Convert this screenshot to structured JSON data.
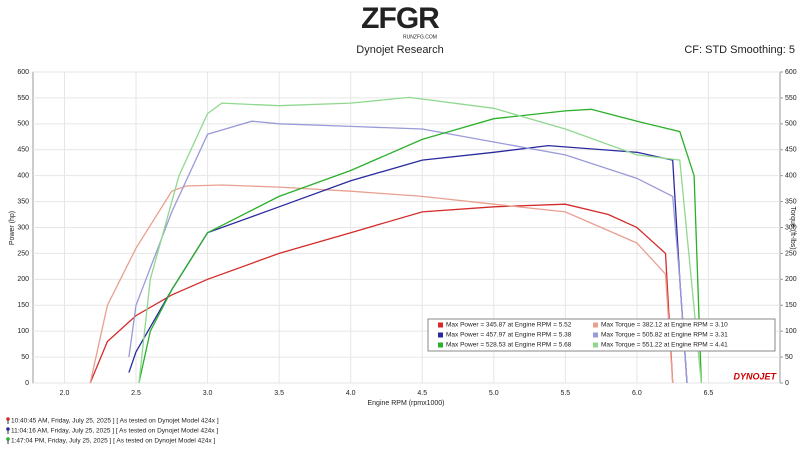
{
  "header": {
    "logo": "ZFGR",
    "site": "RUNZFG.COM",
    "subtitle": "Dynojet Research",
    "settings": "CF: STD Smoothing: 5"
  },
  "chart_data": {
    "type": "line",
    "xlabel": "Engine RPM (rpmx1000)",
    "ylabel": "Power (hp)",
    "y2label": "Torque (ft-lbs)",
    "watermark": "DYNOJET",
    "xlim": [
      1.78,
      7.0
    ],
    "xticks": [
      {
        "value": 2,
        "label": "2.0"
      },
      2.5,
      {
        "value": 3,
        "label": "3.0"
      },
      3.5,
      {
        "value": 4,
        "label": "4.0"
      },
      4.5,
      {
        "value": 5,
        "label": "5.0"
      },
      5.5,
      {
        "value": 6,
        "label": "6.0"
      },
      6.5
    ],
    "ylim": [
      0,
      600
    ],
    "yticks": [
      0,
      50,
      100,
      150,
      200,
      250,
      300,
      350,
      400,
      450,
      500,
      550,
      600
    ],
    "y2lim": [
      0,
      600
    ],
    "y2ticks": [
      0,
      50,
      100,
      150,
      200,
      250,
      300,
      350,
      400,
      450,
      500,
      550,
      600
    ],
    "grid": true,
    "series": [
      {
        "name": "Max Power = 345.87 at Engine RPM = 5.52",
        "color": "#d42a2a",
        "x": [
          2.18,
          2.3,
          2.5,
          2.75,
          3.0,
          3.5,
          4.0,
          4.5,
          5.0,
          5.5,
          5.8,
          6.0,
          6.2,
          6.25
        ],
        "values": [
          0,
          80,
          130,
          170,
          200,
          250,
          290,
          330,
          340,
          345,
          325,
          300,
          250,
          0
        ]
      },
      {
        "name": "Max Torque = 382.12 at Engine RPM = 3.10",
        "color": "#e8a090",
        "axis": "y2",
        "x": [
          2.18,
          2.3,
          2.5,
          2.75,
          2.85,
          3.1,
          3.5,
          4.0,
          4.5,
          5.0,
          5.5,
          6.0,
          6.2,
          6.25
        ],
        "values": [
          0,
          150,
          260,
          370,
          380,
          382,
          378,
          370,
          360,
          345,
          330,
          270,
          210,
          0
        ]
      },
      {
        "name": "Max Power = 457.97 at Engine RPM = 5.38",
        "color": "#2a2aa0",
        "x": [
          2.45,
          2.5,
          2.75,
          3.0,
          3.5,
          4.0,
          4.5,
          5.0,
          5.38,
          6.0,
          6.25,
          6.3,
          6.35
        ],
        "values": [
          20,
          60,
          180,
          290,
          340,
          390,
          430,
          445,
          458,
          445,
          430,
          200,
          0
        ]
      },
      {
        "name": "Max Torque = 505.82 at Engine RPM = 3.31",
        "color": "#9a9ad8",
        "axis": "y2",
        "x": [
          2.45,
          2.5,
          2.75,
          3.0,
          3.31,
          3.5,
          4.0,
          4.5,
          5.0,
          5.5,
          6.0,
          6.25,
          6.3,
          6.35
        ],
        "values": [
          50,
          150,
          330,
          480,
          505,
          500,
          495,
          490,
          465,
          440,
          395,
          360,
          200,
          0
        ]
      },
      {
        "name": "Max Power = 528.53 at Engine RPM = 5.68",
        "color": "#2ab02a",
        "x": [
          2.52,
          2.6,
          2.75,
          3.0,
          3.5,
          4.0,
          4.5,
          5.0,
          5.5,
          5.68,
          6.0,
          6.3,
          6.4,
          6.45
        ],
        "values": [
          0,
          100,
          180,
          290,
          360,
          410,
          470,
          510,
          525,
          528,
          505,
          485,
          400,
          0
        ]
      },
      {
        "name": "Max Torque = 551.22 at Engine RPM = 4.41",
        "color": "#90d890",
        "axis": "y2",
        "x": [
          2.52,
          2.6,
          2.8,
          3.0,
          3.1,
          3.5,
          4.0,
          4.41,
          5.0,
          5.5,
          6.0,
          6.3,
          6.45
        ],
        "values": [
          0,
          200,
          400,
          520,
          540,
          535,
          540,
          551,
          530,
          490,
          440,
          430,
          0
        ]
      }
    ]
  },
  "footer": [
    "10:40:45 AM, Friday, July 25, 2025 ] [ As tested on Dynojet Model 424x ]",
    "11:04:16 AM, Friday, July 25, 2025 ] [ As tested on Dynojet Model 424x ]",
    "1:47:04 PM, Friday, July 25, 2025 ] [ As tested on Dynojet Model 424x ]"
  ]
}
